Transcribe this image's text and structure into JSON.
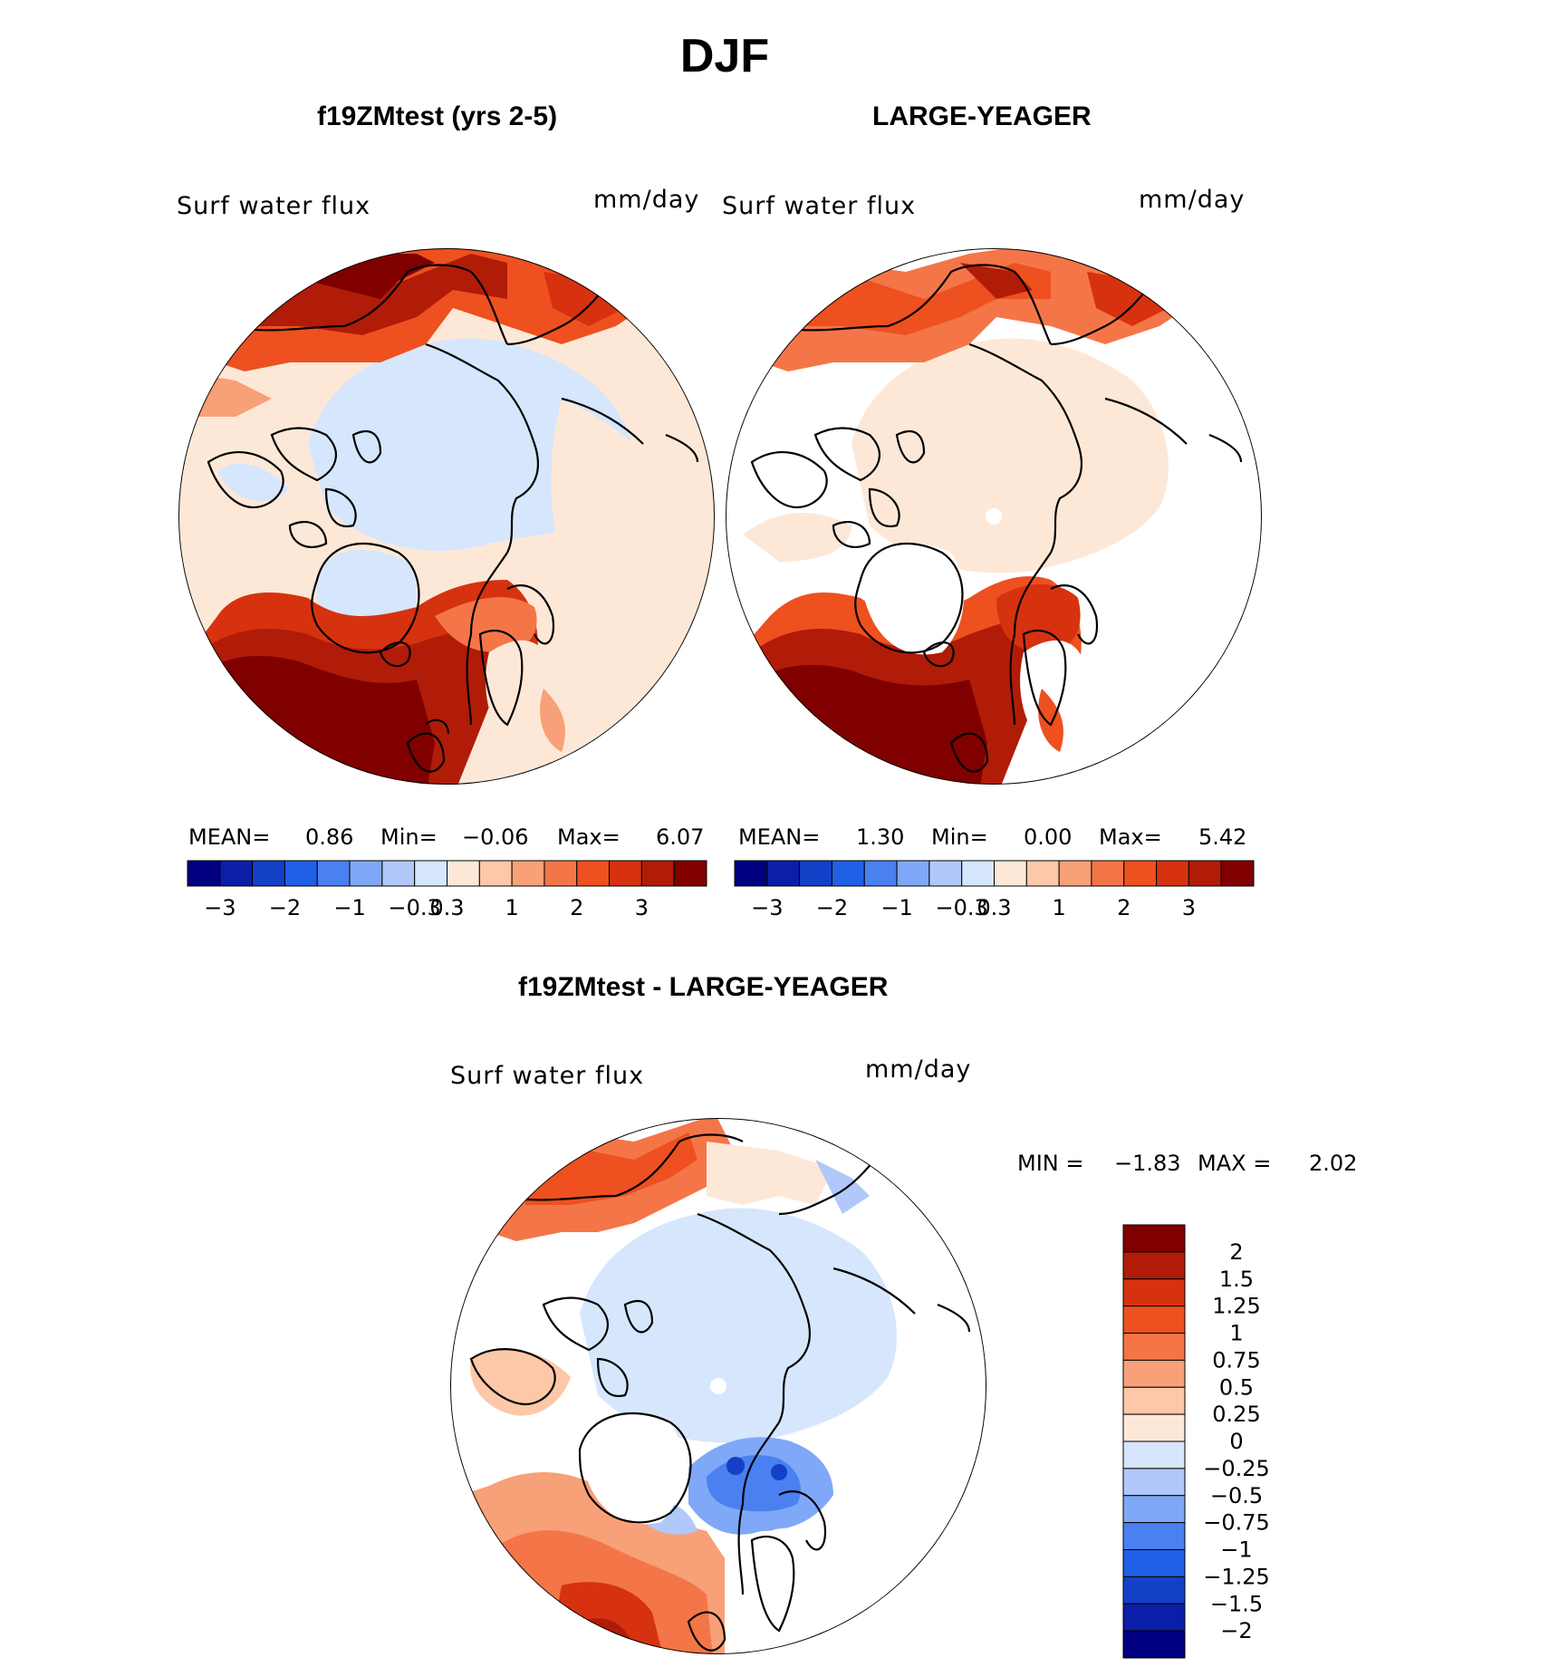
{
  "figure": {
    "season": "DJF",
    "field_label": "Surf  water  flux",
    "units": "mm/day"
  },
  "panels": [
    {
      "title": "f19ZMtest (yrs 2-5)",
      "stats": {
        "mean_label": "MEAN=",
        "mean": "0.86",
        "min_label": "Min=",
        "min": "−0.06",
        "max_label": "Max=",
        "max": "6.07"
      }
    },
    {
      "title": "LARGE-YEAGER",
      "stats": {
        "mean_label": "MEAN=",
        "mean": "1.30",
        "min_label": "Min=",
        "min": "0.00",
        "max_label": "Max=",
        "max": "5.42"
      }
    },
    {
      "title": "f19ZMtest - LARGE-YEAGER",
      "stats": {
        "min_label": "MIN =",
        "min": "−1.83",
        "max_label": "MAX =",
        "max": "2.02"
      }
    }
  ],
  "colorbar_main": {
    "colors": [
      "#000080",
      "#0a1ea8",
      "#1440c8",
      "#2060e6",
      "#4a80f0",
      "#80a8f8",
      "#b0c8fa",
      "#d6e6fc",
      "#fde8d8",
      "#fcc8a8",
      "#f8a078",
      "#f47648",
      "#ee5020",
      "#d63210",
      "#b01c08",
      "#800000"
    ],
    "tick_labels": [
      "−3",
      "−2",
      "−1",
      "−0.3",
      "0.3",
      "1",
      "2",
      "3"
    ]
  },
  "colorbar_diff": {
    "colors": [
      "#800000",
      "#b01c08",
      "#d63210",
      "#ee5020",
      "#f47648",
      "#f8a078",
      "#fcc8a8",
      "#fde8d8",
      "#d6e6fc",
      "#b0c8fa",
      "#80a8f8",
      "#4a80f0",
      "#2060e6",
      "#1440c8",
      "#0a1ea8",
      "#000080"
    ],
    "labels": [
      "2",
      "1.5",
      "1.25",
      "1",
      "0.75",
      "0.5",
      "0.25",
      "0",
      "−0.25",
      "−0.5",
      "−0.75",
      "−1",
      "−1.25",
      "−1.5",
      "−2"
    ]
  }
}
